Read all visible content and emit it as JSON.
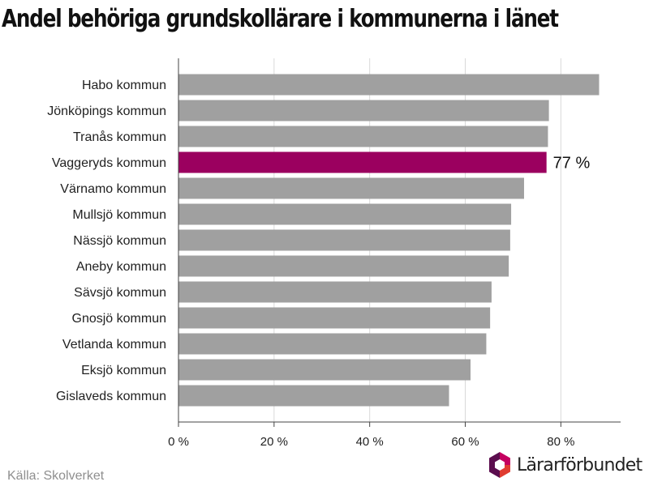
{
  "header": {
    "title": "Andel behöriga grundskollärare i kommunerna i länet"
  },
  "footer": {
    "source": "Källa: Skolverket",
    "brand": "Lärarförbundet"
  },
  "colors": {
    "bar": "#a0a0a0",
    "highlight": "#9b005f",
    "grid": "#d9d9d9",
    "axis": "#444444",
    "text": "#222222",
    "brand_logo": [
      "#5b0d4e",
      "#c4005f",
      "#e03c31"
    ]
  },
  "chart_data": {
    "type": "bar",
    "orientation": "horizontal",
    "title": "Andel behöriga grundskollärare i kommunerna i länet",
    "categories": [
      "Habo kommun",
      "Jönköpings kommun",
      "Tranås kommun",
      "Vaggeryds kommun",
      "Värnamo kommun",
      "Mullsjö kommun",
      "Nässjö kommun",
      "Aneby kommun",
      "Sävsjö kommun",
      "Gnosjö kommun",
      "Vetlanda kommun",
      "Eksjö kommun",
      "Gislaveds kommun"
    ],
    "values": [
      88,
      77.5,
      77.3,
      77,
      72.3,
      69.6,
      69.4,
      69.1,
      65.5,
      65.2,
      64.4,
      61.1,
      56.6
    ],
    "highlight_index": 3,
    "highlight_label": "77 %",
    "xlim": [
      0,
      92.5
    ],
    "xticks": [
      0,
      20,
      40,
      60,
      80
    ],
    "xtick_labels": [
      "0 %",
      "20 %",
      "40 %",
      "60 %",
      "80 %"
    ],
    "xlabel": "",
    "ylabel": "",
    "grid": true
  }
}
